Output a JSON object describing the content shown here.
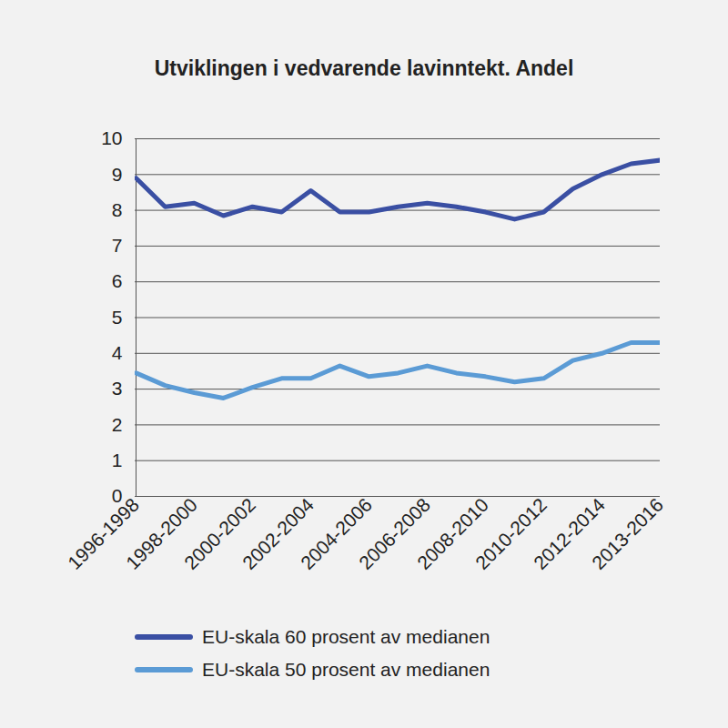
{
  "chart_data": {
    "type": "line",
    "title": "Utviklingen i vedvarende lavinntekt. Andel",
    "categories": [
      "1996-1998",
      null,
      "1998-2000",
      null,
      "2000-2002",
      null,
      "2002-2004",
      null,
      "2004-2006",
      null,
      "2006-2008",
      null,
      "2008-2010",
      null,
      "2010-2012",
      null,
      "2012-2014",
      null,
      "2013-2016"
    ],
    "series": [
      {
        "name": "EU-skala 60 prosent av medianen",
        "color": "#3a4fa3",
        "values": [
          8.9,
          8.1,
          8.2,
          7.85,
          8.1,
          7.95,
          8.55,
          7.95,
          7.95,
          8.1,
          8.2,
          8.1,
          7.95,
          7.75,
          7.95,
          8.6,
          9.0,
          9.3,
          9.4
        ]
      },
      {
        "name": "EU-skala 50 prosent av medianen",
        "color": "#5b9bd5",
        "values": [
          3.45,
          3.1,
          2.9,
          2.75,
          3.05,
          3.3,
          3.3,
          3.65,
          3.35,
          3.45,
          3.65,
          3.45,
          3.35,
          3.2,
          3.3,
          3.8,
          4.0,
          4.3,
          4.3
        ]
      }
    ],
    "ylim": [
      0,
      10
    ],
    "yticks": [
      0,
      1,
      2,
      3,
      4,
      5,
      6,
      7,
      8,
      9,
      10
    ],
    "grid": true,
    "legend": "bottom"
  }
}
